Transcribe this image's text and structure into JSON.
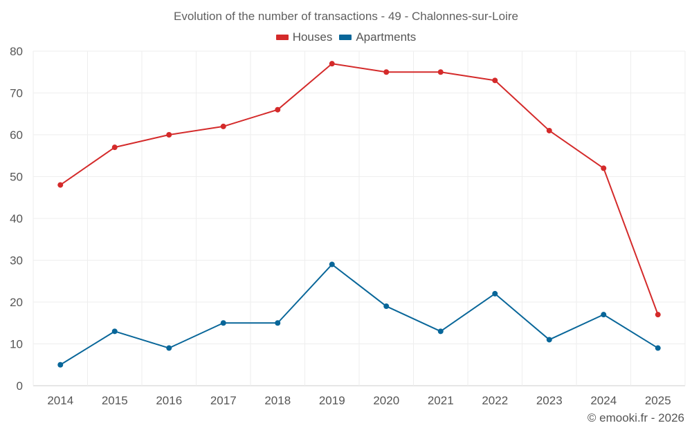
{
  "chart_data": {
    "type": "line",
    "title": "Evolution of the number of transactions - 49 - Chalonnes-sur-Loire",
    "xlabel": "",
    "ylabel": "",
    "categories": [
      "2014",
      "2015",
      "2016",
      "2017",
      "2018",
      "2019",
      "2020",
      "2021",
      "2022",
      "2023",
      "2024",
      "2025"
    ],
    "ylim": [
      0,
      80
    ],
    "yticks": [
      0,
      10,
      20,
      30,
      40,
      50,
      60,
      70,
      80
    ],
    "grid": true,
    "legend_position": "top-center",
    "series": [
      {
        "name": "Houses",
        "color": "#d42a2a",
        "values": [
          48,
          57,
          60,
          62,
          66,
          77,
          75,
          75,
          73,
          61,
          52,
          17
        ]
      },
      {
        "name": "Apartments",
        "color": "#086699",
        "values": [
          5,
          13,
          9,
          15,
          15,
          29,
          19,
          13,
          22,
          11,
          17,
          9
        ]
      }
    ]
  },
  "footer": {
    "credit": "© emooki.fr - 2026"
  }
}
